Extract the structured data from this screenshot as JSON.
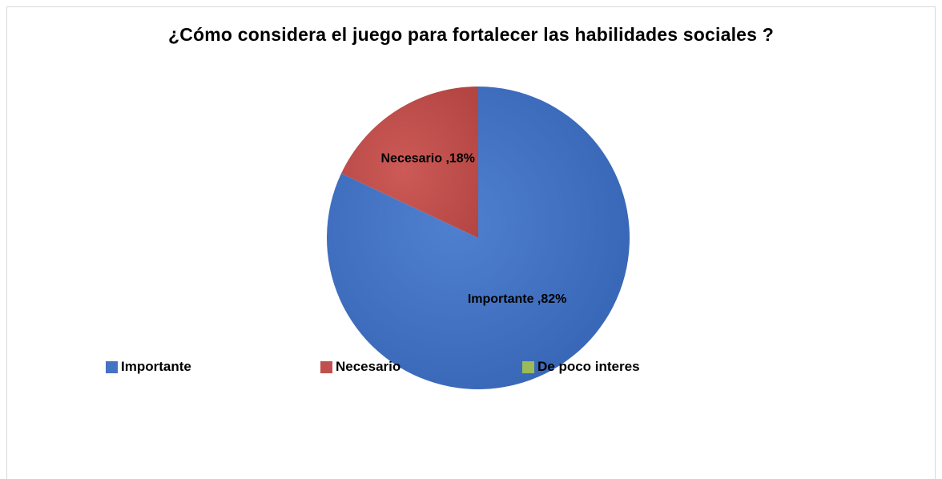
{
  "chart_data": {
    "type": "pie",
    "title": "¿Cómo considera el juego para fortalecer las habilidades sociales ?",
    "categories": [
      "Importante",
      "Necesario",
      "De poco interes"
    ],
    "values": [
      82,
      18,
      0
    ],
    "unit": "%",
    "data_labels": [
      "Importante ,82%",
      "Necesario ,18%",
      ""
    ],
    "colors": [
      "#4472c4",
      "#c0504d",
      "#9bbb59"
    ],
    "legend_position": "bottom",
    "start_angle": "12 o'clock, clockwise"
  }
}
